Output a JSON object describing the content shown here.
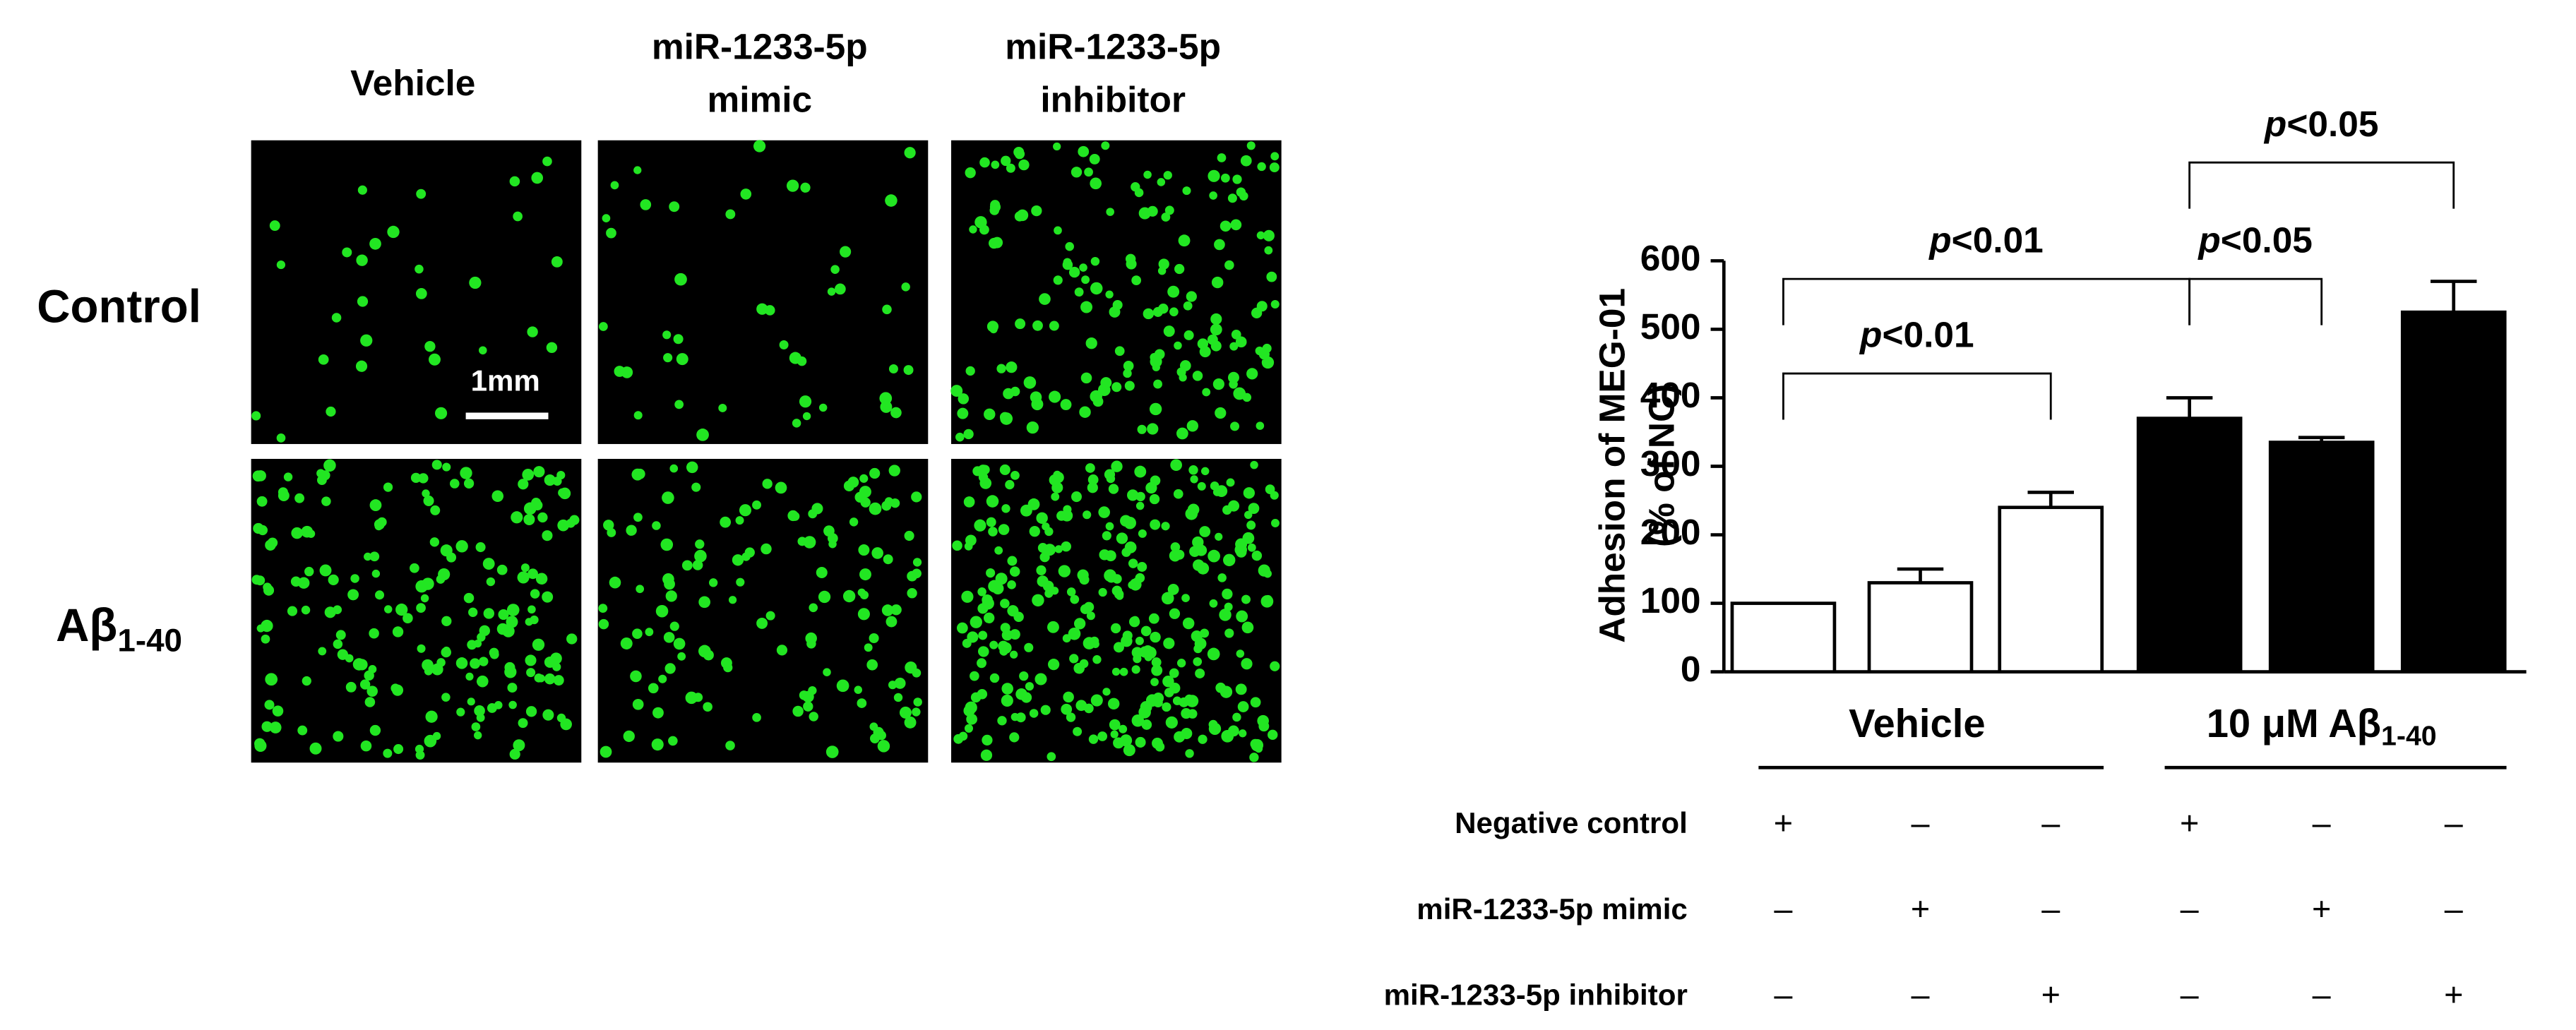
{
  "image_panel": {
    "columns": [
      [
        "Vehicle"
      ],
      [
        "miR-1233-5p",
        "mimic"
      ],
      [
        "miR-1233-5p",
        "inhibitor"
      ]
    ],
    "rows": [
      {
        "text": "Control"
      },
      {
        "text": "Aβ",
        "sub": "1-40"
      }
    ],
    "scale_bar": "1mm"
  },
  "chart_data": {
    "type": "bar",
    "y_label": [
      "Adhesion of MEG-01",
      "(% of NC)"
    ],
    "values": [
      100,
      130,
      240,
      370,
      335,
      525
    ],
    "errors": [
      0,
      20,
      22,
      30,
      7,
      45
    ],
    "colors": [
      "#ffffff",
      "#ffffff",
      "#ffffff",
      "#000000",
      "#000000",
      "#000000"
    ],
    "ylim": [
      0,
      600
    ],
    "yticks": [
      0,
      100,
      200,
      300,
      400,
      500,
      600
    ],
    "groups": [
      {
        "label": "Vehicle",
        "bars": [
          0,
          1,
          2
        ]
      },
      {
        "label": "10 μM Aβ",
        "sub": "1-40",
        "bars": [
          3,
          4,
          5
        ]
      }
    ],
    "conditions": [
      {
        "label": "Negative control",
        "marks": [
          "+",
          "–",
          "–",
          "+",
          "–",
          "–"
        ]
      },
      {
        "label": "miR-1233-5p mimic",
        "marks": [
          "–",
          "+",
          "–",
          "–",
          "+",
          "–"
        ]
      },
      {
        "label": "miR-1233-5p inhibitor",
        "marks": [
          "–",
          "–",
          "+",
          "–",
          "–",
          "+"
        ]
      }
    ],
    "significance": [
      {
        "label": "p<0.01",
        "bars": [
          0,
          2
        ]
      },
      {
        "label": "p<0.01",
        "bars": [
          0,
          3
        ]
      },
      {
        "label": "p<0.05",
        "bars": [
          3,
          4
        ]
      },
      {
        "label": "p<0.05",
        "bars": [
          3,
          5
        ]
      }
    ]
  }
}
